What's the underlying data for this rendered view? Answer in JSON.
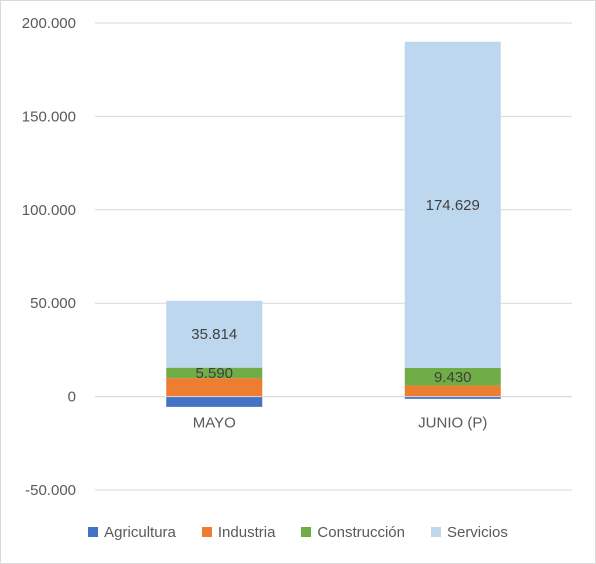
{
  "chart_data": {
    "type": "bar",
    "stacked": true,
    "categories": [
      "MAYO",
      "JUNIO (P)"
    ],
    "series": [
      {
        "name": "Agricultura",
        "color": "#4472C4",
        "values": [
          -5500,
          -1200
        ]
      },
      {
        "name": "Industria",
        "color": "#ED7D31",
        "values": [
          9900,
          5900
        ]
      },
      {
        "name": "Construcción",
        "color": "#70AD47",
        "values": [
          5590,
          9430
        ]
      },
      {
        "name": "Servicios",
        "color": "#BDD7EE",
        "values": [
          35814,
          174629
        ]
      }
    ],
    "data_labels": [
      {
        "series": "Construcción",
        "category": "MAYO",
        "text": "5.590"
      },
      {
        "series": "Servicios",
        "category": "MAYO",
        "text": "35.814"
      },
      {
        "series": "Construcción",
        "category": "JUNIO (P)",
        "text": "9.430"
      },
      {
        "series": "Servicios",
        "category": "JUNIO (P)",
        "text": "174.629"
      }
    ],
    "yticks": [
      {
        "value": 200000,
        "label": "200.000"
      },
      {
        "value": 150000,
        "label": "150.000"
      },
      {
        "value": 100000,
        "label": "100.000"
      },
      {
        "value": 50000,
        "label": "50.000"
      },
      {
        "value": 0,
        "label": "0"
      },
      {
        "value": -50000,
        "label": "-50.000"
      }
    ],
    "ylim": [
      -50000,
      200000
    ],
    "grid": true,
    "legend_position": "bottom"
  }
}
